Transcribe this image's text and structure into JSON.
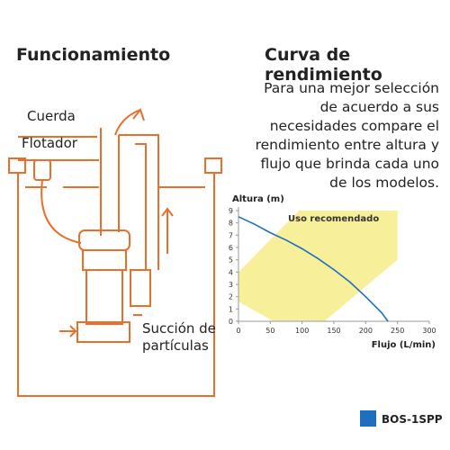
{
  "left_title": "Funcionamiento",
  "right_title": "Curva de rendimiento",
  "description": "Para una mejor selección de acuerdo a sus necesidades compare el rendimiento entre altura y flujo que brinda cada uno de los modelos.",
  "diagram_labels": [
    "Cuerda",
    "Flotador",
    "Succión de partículas"
  ],
  "chart_data": {
    "type": "line",
    "y_label": "Altura (m)",
    "x_label": "Flujo (L/min)",
    "zone_label": "Uso recomendado",
    "xlim": [
      0,
      300
    ],
    "ylim": [
      0,
      9
    ],
    "xticks": [
      0,
      50,
      100,
      150,
      200,
      250,
      300
    ],
    "yticks": [
      0,
      1,
      2,
      3,
      4,
      5,
      6,
      7,
      8,
      9
    ],
    "zone": {
      "color": "#f7ef9a",
      "x": [
        0,
        95,
        250,
        250,
        135,
        55,
        0
      ],
      "values": [
        4,
        9,
        9,
        5,
        0,
        0,
        1.6
      ]
    },
    "series": [
      {
        "name": "BOS-1SPP",
        "color": "#1f6fbf",
        "x": [
          0,
          25,
          50,
          75,
          100,
          125,
          150,
          175,
          200,
          225,
          235
        ],
        "values": [
          8.5,
          7.9,
          7.2,
          6.6,
          5.9,
          5.1,
          4.2,
          3.2,
          2,
          0.7,
          0
        ]
      }
    ]
  }
}
